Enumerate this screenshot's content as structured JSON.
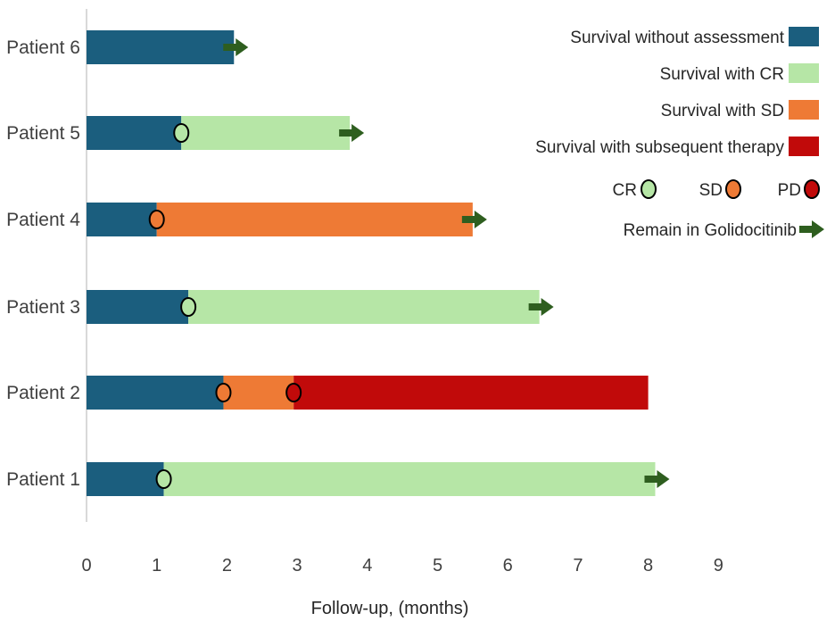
{
  "chart_data": {
    "type": "swimmer",
    "title": "",
    "xlabel": "Follow-up, (months)",
    "ylabel": "",
    "xlim": [
      0,
      10
    ],
    "xticks": [
      0,
      1,
      2,
      3,
      4,
      5,
      6,
      7,
      8,
      9
    ],
    "grid": false,
    "legend_position": "top-right",
    "colors": {
      "no_assessment": "#1b5e7e",
      "cr": "#b6e6a6",
      "sd": "#ee7a35",
      "subsequent": "#c10a0a",
      "arrow": "#2e5e1f"
    },
    "legend": {
      "segments": [
        {
          "key": "no_assessment",
          "label": "Survival without assessment"
        },
        {
          "key": "cr",
          "label": "Survival with CR"
        },
        {
          "key": "sd",
          "label": "Survival with SD"
        },
        {
          "key": "subsequent",
          "label": "Survival with subsequent therapy"
        }
      ],
      "markers": [
        {
          "key": "cr",
          "label": "CR"
        },
        {
          "key": "sd",
          "label": "SD"
        },
        {
          "key": "subsequent",
          "label": "PD"
        }
      ],
      "arrow_label": "Remain in Golidocitinib"
    },
    "patients": [
      {
        "label": "Patient 1",
        "segments": [
          {
            "status": "no_assessment",
            "start": 0,
            "end": 1.1
          },
          {
            "status": "cr",
            "start": 1.1,
            "end": 8.1
          }
        ],
        "events": [
          {
            "type": "cr",
            "time": 1.1
          }
        ],
        "ongoing": true
      },
      {
        "label": "Patient 2",
        "segments": [
          {
            "status": "no_assessment",
            "start": 0,
            "end": 1.95
          },
          {
            "status": "sd",
            "start": 1.95,
            "end": 2.95
          },
          {
            "status": "subsequent",
            "start": 2.95,
            "end": 8.0
          }
        ],
        "events": [
          {
            "type": "sd",
            "time": 1.95
          },
          {
            "type": "subsequent",
            "time": 2.95
          }
        ],
        "ongoing": false
      },
      {
        "label": "Patient 3",
        "segments": [
          {
            "status": "no_assessment",
            "start": 0,
            "end": 1.45
          },
          {
            "status": "cr",
            "start": 1.45,
            "end": 6.45
          }
        ],
        "events": [
          {
            "type": "cr",
            "time": 1.45
          }
        ],
        "ongoing": true
      },
      {
        "label": "Patient 4",
        "segments": [
          {
            "status": "no_assessment",
            "start": 0,
            "end": 1.0
          },
          {
            "status": "sd",
            "start": 1.0,
            "end": 5.5
          }
        ],
        "events": [
          {
            "type": "sd",
            "time": 1.0
          }
        ],
        "ongoing": true
      },
      {
        "label": "Patient 5",
        "segments": [
          {
            "status": "no_assessment",
            "start": 0,
            "end": 1.35
          },
          {
            "status": "cr",
            "start": 1.35,
            "end": 3.75
          }
        ],
        "events": [
          {
            "type": "cr",
            "time": 1.35
          }
        ],
        "ongoing": true
      },
      {
        "label": "Patient 6",
        "segments": [
          {
            "status": "no_assessment",
            "start": 0,
            "end": 2.1
          }
        ],
        "events": [],
        "ongoing": true
      }
    ]
  }
}
